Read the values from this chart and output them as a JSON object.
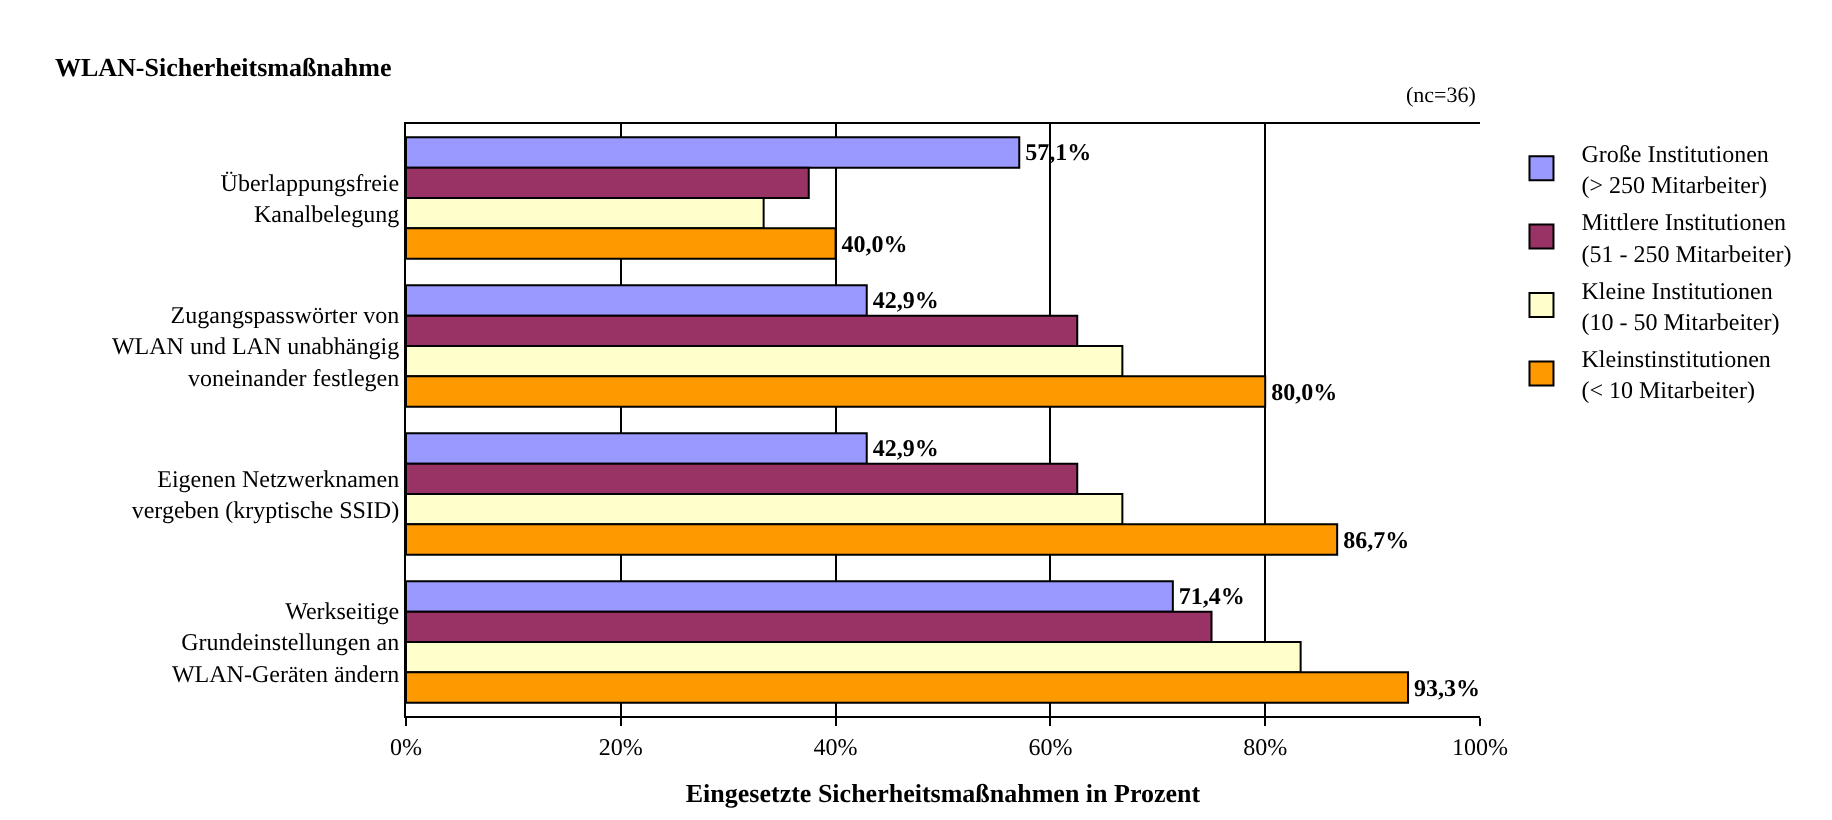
{
  "chart_data": {
    "type": "bar",
    "orientation": "horizontal",
    "title": "WLAN-Sicherheitsmaßnahme",
    "xlabel": "Eingesetzte Sicherheitsmaßnahmen in Prozent",
    "annotations": [
      "(nc=36)"
    ],
    "categories": [
      "Überlappungsfreie\nKanalbelegung",
      "Zugangspasswörter von\nWLAN und LAN unabhängig\nvoneinander festlegen",
      "Eigenen Netzwerknamen\nvergeben (kryptische SSID)",
      "Werkseitige\nGrundeinstellungen an\nWLAN-Geräten ändern"
    ],
    "series": [
      {
        "name": "Große Institutionen\n(> 250 Mitarbeiter)",
        "color": "#9999ff",
        "values": [
          57.1,
          42.9,
          42.9,
          71.4
        ],
        "value_labels": [
          "57,1%",
          "42,9%",
          "42,9%",
          "71,4%"
        ]
      },
      {
        "name": "Mittlere Institutionen\n(51 - 250 Mitarbeiter)",
        "color": "#993366",
        "values": [
          37.5,
          62.5,
          62.5,
          75
        ]
      },
      {
        "name": "Kleine Institutionen\n(10 - 50 Mitarbeiter)",
        "color": "#ffffcc",
        "values": [
          33.3,
          66.7,
          66.7,
          83.3
        ]
      },
      {
        "name": "Kleinstinstitutionen\n(< 10 Mitarbeiter)",
        "color": "#ff9900",
        "values": [
          40,
          80,
          86.7,
          93.3
        ],
        "value_labels": [
          "40,0%",
          "80,0%",
          "86,7%",
          "93,3%"
        ]
      }
    ],
    "xlim": [
      0,
      100
    ],
    "xticks": [
      {
        "value": 0,
        "label": "0%"
      },
      {
        "value": 20,
        "label": "20%"
      },
      {
        "value": 40,
        "label": "40%"
      },
      {
        "value": 60,
        "label": "60%"
      },
      {
        "value": 80,
        "label": "80%"
      },
      {
        "value": 100,
        "label": "100%"
      }
    ],
    "grid": "x",
    "legend": "right"
  }
}
